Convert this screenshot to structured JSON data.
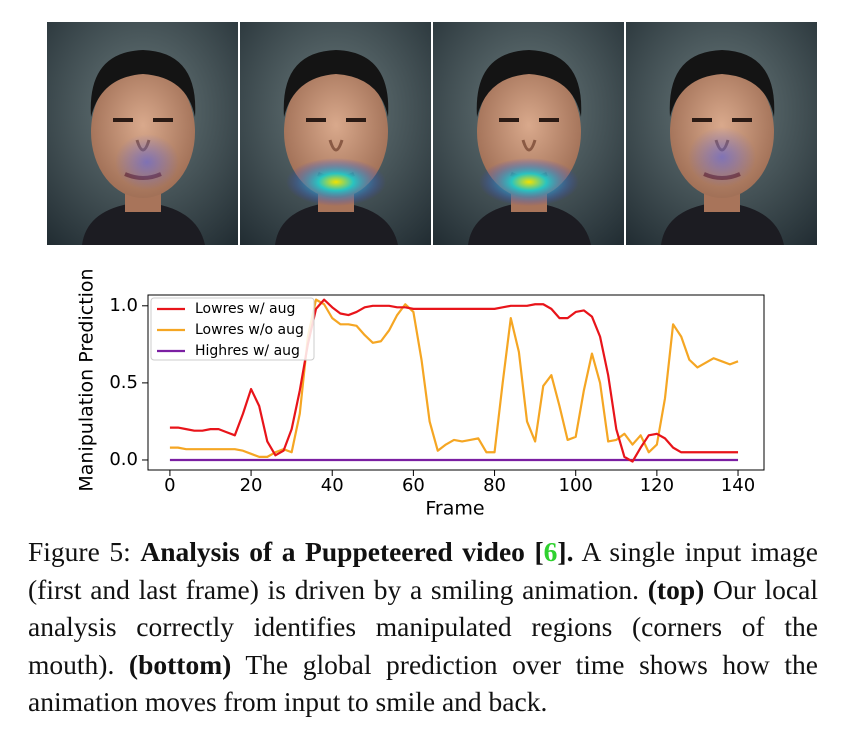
{
  "chart_data": {
    "type": "line",
    "xlabel": "Frame",
    "ylabel": "Manipulation Prediction",
    "x": [
      0,
      2,
      4,
      6,
      8,
      10,
      12,
      14,
      16,
      18,
      20,
      22,
      24,
      26,
      28,
      30,
      32,
      34,
      36,
      38,
      40,
      42,
      44,
      46,
      48,
      50,
      52,
      54,
      56,
      58,
      60,
      62,
      64,
      66,
      68,
      70,
      72,
      74,
      76,
      78,
      80,
      82,
      84,
      86,
      88,
      90,
      92,
      94,
      96,
      98,
      100,
      102,
      104,
      106,
      108,
      110,
      112,
      114,
      116,
      118,
      120,
      122,
      124,
      126,
      128,
      130,
      132,
      134,
      136,
      138,
      140
    ],
    "series": [
      {
        "name": "Lowres w/ aug",
        "color": "#e8141a",
        "values": [
          0.21,
          0.21,
          0.2,
          0.19,
          0.19,
          0.2,
          0.2,
          0.18,
          0.16,
          0.3,
          0.46,
          0.35,
          0.12,
          0.03,
          0.06,
          0.2,
          0.45,
          0.75,
          0.98,
          1.04,
          0.99,
          0.95,
          0.94,
          0.96,
          0.99,
          1.0,
          1.0,
          1.0,
          0.99,
          0.99,
          0.98,
          0.98,
          0.98,
          0.98,
          0.98,
          0.98,
          0.98,
          0.98,
          0.98,
          0.98,
          0.98,
          0.99,
          1.0,
          1.0,
          1.0,
          1.01,
          1.01,
          0.98,
          0.92,
          0.92,
          0.96,
          0.97,
          0.93,
          0.8,
          0.55,
          0.2,
          0.02,
          -0.01,
          0.08,
          0.16,
          0.17,
          0.14,
          0.08,
          0.05,
          0.05,
          0.05,
          0.05,
          0.05,
          0.05,
          0.05,
          0.05
        ]
      },
      {
        "name": "Lowres w/o aug",
        "color": "#f5a623",
        "values": [
          0.08,
          0.08,
          0.07,
          0.07,
          0.07,
          0.07,
          0.07,
          0.07,
          0.07,
          0.06,
          0.04,
          0.02,
          0.02,
          0.05,
          0.07,
          0.05,
          0.3,
          0.8,
          1.04,
          1.01,
          0.92,
          0.88,
          0.88,
          0.87,
          0.81,
          0.76,
          0.77,
          0.84,
          0.94,
          1.01,
          0.96,
          0.65,
          0.25,
          0.06,
          0.1,
          0.13,
          0.12,
          0.13,
          0.14,
          0.05,
          0.05,
          0.5,
          0.92,
          0.7,
          0.25,
          0.12,
          0.48,
          0.55,
          0.35,
          0.13,
          0.15,
          0.45,
          0.69,
          0.5,
          0.12,
          0.13,
          0.17,
          0.1,
          0.16,
          0.05,
          0.1,
          0.4,
          0.88,
          0.8,
          0.65,
          0.6,
          0.63,
          0.66,
          0.64,
          0.62,
          0.64
        ]
      },
      {
        "name": "Highres w/ aug",
        "color": "#7b1fa2",
        "values": [
          0,
          0,
          0,
          0,
          0,
          0,
          0,
          0,
          0,
          0,
          0,
          0,
          0,
          0,
          0,
          0,
          0,
          0,
          0,
          0,
          0,
          0,
          0,
          0,
          0,
          0,
          0,
          0,
          0,
          0,
          0,
          0,
          0,
          0,
          0,
          0,
          0,
          0,
          0,
          0,
          0,
          0,
          0,
          0,
          0,
          0,
          0,
          0,
          0,
          0,
          0,
          0,
          0,
          0,
          0,
          0,
          0,
          0,
          0,
          0,
          0,
          0,
          0,
          0,
          0,
          0,
          0,
          0,
          0,
          0,
          0
        ]
      }
    ],
    "xlim": [
      -5.4,
      146.4
    ],
    "ylim": [
      -0.065,
      1.07
    ],
    "xticks": [
      0,
      20,
      40,
      60,
      80,
      100,
      120,
      140
    ],
    "yticks": [
      {
        "value": 0,
        "label": "0.0"
      },
      {
        "value": 0.5,
        "label": "0.5"
      },
      {
        "value": 1,
        "label": "1.0"
      }
    ],
    "grid": false,
    "legend": "upper-left"
  },
  "caption": [
    {
      "text": "Figure 5: "
    },
    {
      "text": "Analysis of a Puppeteered video [",
      "bold": true
    },
    {
      "text": "6",
      "bold": true,
      "color": "#2fd12f"
    },
    {
      "text": "].",
      "bold": true
    },
    {
      "text": " A single input image (first and last frame) is driven by a smiling animation. "
    },
    {
      "text": "(top)",
      "bold": true
    },
    {
      "text": " Our local analysis correctly identifies manipulated regions (cor­ners of the mouth). "
    },
    {
      "text": "(bottom)",
      "bold": true
    },
    {
      "text": " The global prediction over time shows how the animation moves from input to smile and back."
    }
  ]
}
